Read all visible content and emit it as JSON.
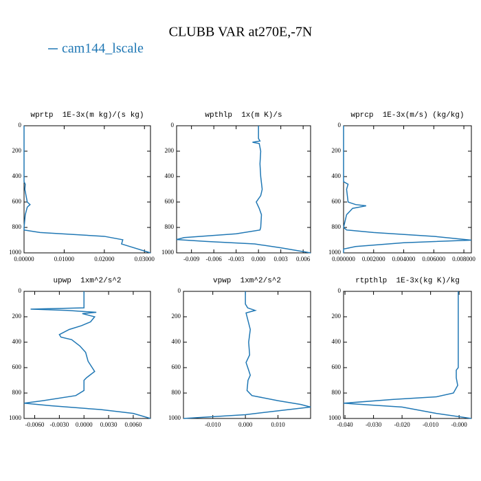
{
  "title": "CLUBB VAR at270E,-7N",
  "legend": {
    "name": "cam144_lscale",
    "color": "#1f77b4"
  },
  "chart_data": [
    {
      "type": "line",
      "title": "wprtp  1E-3x(m kg)/(s kg)",
      "y": [
        0,
        100,
        200,
        300,
        400,
        440,
        460,
        500,
        600,
        620,
        640,
        700,
        800,
        820,
        840,
        870,
        897,
        930,
        1000
      ],
      "values": [
        0,
        0,
        0,
        0,
        0,
        0,
        0.0003,
        0.0002,
        0.0008,
        0.0015,
        0.0008,
        0.0003,
        0,
        0,
        0.004,
        0.02,
        0.0246,
        0.0243,
        0.0315
      ],
      "xlim": [
        0,
        0.0315
      ],
      "xticks": [
        {
          "value": 0,
          "label": "0.00000"
        },
        {
          "value": 0.01,
          "label": "0.01000"
        },
        {
          "value": 0.02,
          "label": "0.02000"
        },
        {
          "value": 0.03,
          "label": "0.03000"
        }
      ],
      "ylim": [
        0,
        1000
      ],
      "yticks": [
        0,
        200,
        400,
        600,
        800,
        1000
      ],
      "y_reversed": true
    },
    {
      "type": "line",
      "title": "wpthlp  1x(m K)/s",
      "y": [
        0,
        100,
        120,
        130,
        140,
        200,
        300,
        400,
        500,
        550,
        600,
        650,
        700,
        800,
        820,
        850,
        880,
        895,
        910,
        930,
        960,
        1000
      ],
      "values": [
        0,
        0,
        0.0002,
        -0.0008,
        0.0001,
        0.0003,
        0.0002,
        0.0003,
        0.0005,
        0.0003,
        -0.0003,
        0.0001,
        0.0004,
        0.0003,
        0.0002,
        -0.003,
        -0.01,
        -0.011,
        -0.007,
        -0.0005,
        0.003,
        0.007
      ],
      "xlim": [
        -0.011,
        0.007
      ],
      "xticks": [
        -0.009,
        -0.006,
        -0.003,
        {
          "value": 0,
          "label": "0.000"
        },
        0.003,
        0.006
      ],
      "ylim": [
        0,
        1000
      ],
      "yticks": [
        0,
        200,
        400,
        600,
        800,
        1000
      ],
      "y_reversed": true
    },
    {
      "type": "line",
      "title": "wprcp  1E-3x(m/s) (kg/kg)",
      "y": [
        0,
        100,
        200,
        300,
        400,
        440,
        460,
        500,
        600,
        620,
        630,
        650,
        700,
        800,
        820,
        840,
        870,
        900,
        920,
        950,
        970,
        1000
      ],
      "values": [
        0,
        0,
        0,
        0,
        0,
        0,
        0.0003,
        0.0002,
        0.0003,
        0.0008,
        0.0015,
        0.0006,
        0.0002,
        0,
        0.0002,
        0.002,
        0.006,
        0.0085,
        0.004,
        0.0008,
        0,
        0
      ],
      "xlim": [
        0,
        0.0085
      ],
      "xticks": [
        {
          "value": 0,
          "label": "0.000000"
        },
        {
          "value": 0.002,
          "label": "0.002000"
        },
        {
          "value": 0.004,
          "label": "0.004000"
        },
        {
          "value": 0.006,
          "label": "0.006000"
        },
        {
          "value": 0.008,
          "label": "0.008000"
        }
      ],
      "ylim": [
        0,
        1000
      ],
      "yticks": [
        0,
        200,
        400,
        600,
        800,
        1000
      ],
      "y_reversed": true
    },
    {
      "type": "line",
      "title": "upwp  1xm^2/s^2",
      "y": [
        0,
        100,
        130,
        140,
        150,
        165,
        175,
        200,
        240,
        270,
        300,
        340,
        360,
        380,
        430,
        480,
        550,
        630,
        680,
        700,
        780,
        820,
        860,
        880,
        900,
        930,
        960,
        1000
      ],
      "values": [
        0,
        0,
        0,
        -0.0065,
        -0.002,
        0.0015,
        -0.0002,
        0.0013,
        0.0008,
        -0.0003,
        -0.0018,
        -0.003,
        -0.0028,
        -0.0015,
        -0.0005,
        0.0002,
        0.0005,
        0.0013,
        0.0003,
        0,
        0,
        -0.001,
        -0.005,
        -0.0073,
        -0.004,
        0.002,
        0.006,
        0.0081
      ],
      "xlim": [
        -0.0073,
        0.0081
      ],
      "xticks": [
        {
          "value": -0.006,
          "label": "-0.0060"
        },
        {
          "value": -0.003,
          "label": "-0.0030"
        },
        {
          "value": 0,
          "label": "0.0000"
        },
        {
          "value": 0.003,
          "label": "0.0030"
        },
        {
          "value": 0.006,
          "label": "0.0060"
        }
      ],
      "ylim": [
        0,
        1000
      ],
      "yticks": [
        0,
        200,
        400,
        600,
        800,
        1000
      ],
      "y_reversed": true
    },
    {
      "type": "line",
      "title": "vpwp  1xm^2/s^2",
      "y": [
        0,
        100,
        130,
        150,
        170,
        200,
        300,
        400,
        500,
        560,
        620,
        660,
        700,
        780,
        820,
        860,
        890,
        910,
        940,
        970,
        1000
      ],
      "values": [
        0,
        0,
        0.0007,
        0.003,
        0.0002,
        0.0005,
        0.0015,
        0.001,
        0.0013,
        0.0002,
        0.001,
        0.0015,
        0.0008,
        0.0005,
        0.002,
        0.01,
        0.017,
        0.02,
        0.01,
        0,
        -0.019
      ],
      "xlim": [
        -0.019,
        0.02
      ],
      "xticks": [
        {
          "value": -0.01,
          "label": "-0.010"
        },
        {
          "value": 0,
          "label": "0.000"
        },
        {
          "value": 0.01,
          "label": "0.010"
        }
      ],
      "ylim": [
        0,
        1000
      ],
      "yticks": [
        0,
        200,
        400,
        600,
        800,
        1000
      ],
      "y_reversed": true
    },
    {
      "type": "line",
      "title": "rtpthlp  1E-3x(kg K)/kg",
      "y": [
        0,
        200,
        400,
        600,
        620,
        680,
        740,
        800,
        830,
        850,
        880,
        910,
        960,
        1000
      ],
      "values": [
        -0.0003,
        -0.0003,
        -0.0003,
        -0.0003,
        -0.001,
        -0.001,
        -0.0005,
        -0.002,
        -0.008,
        -0.023,
        -0.0405,
        -0.02,
        -0.008,
        0.0043
      ],
      "xlim": [
        -0.0405,
        0.0043
      ],
      "xticks": [
        {
          "value": -0.04,
          "label": "-0.040"
        },
        {
          "value": -0.03,
          "label": "-0.030"
        },
        {
          "value": -0.02,
          "label": "-0.020"
        },
        {
          "value": -0.01,
          "label": "-0.010"
        },
        {
          "value": 0,
          "label": "-0.000"
        }
      ],
      "ylim": [
        0,
        1000
      ],
      "yticks": [
        0,
        200,
        400,
        600,
        800,
        1000
      ],
      "y_reversed": true
    }
  ]
}
